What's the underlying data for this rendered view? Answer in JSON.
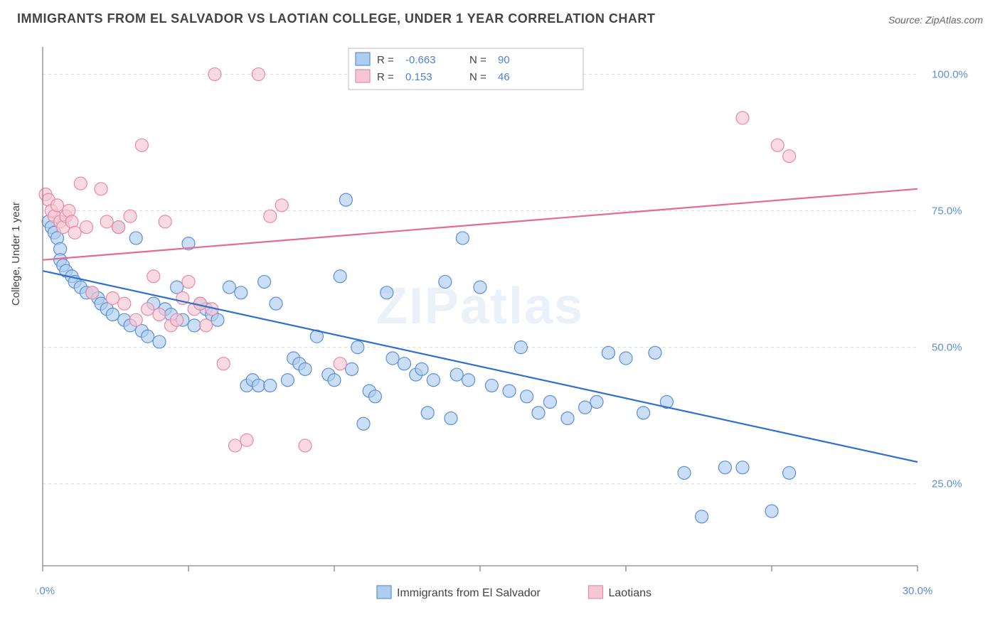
{
  "title": "IMMIGRANTS FROM EL SALVADOR VS LAOTIAN COLLEGE, UNDER 1 YEAR CORRELATION CHART",
  "source_label": "Source:",
  "source_name": "ZipAtlas.com",
  "watermark": "ZIPatlas",
  "y_axis_label": "College, Under 1 year",
  "chart": {
    "type": "scatter",
    "background_color": "#ffffff",
    "grid_color": "#d9d9d9",
    "axis_color": "#888888",
    "xlim": [
      0,
      30
    ],
    "ylim": [
      10,
      105
    ],
    "x_ticks": [
      0,
      5,
      10,
      15,
      20,
      25,
      30
    ],
    "x_tick_labels": [
      "0.0%",
      "",
      "",
      "",
      "",
      "",
      "30.0%"
    ],
    "y_ticks": [
      25,
      50,
      75,
      100
    ],
    "y_tick_labels": [
      "25.0%",
      "50.0%",
      "75.0%",
      "100.0%"
    ],
    "marker_radius": 9,
    "marker_stroke_width": 1.2,
    "line_width": 2.2,
    "series": [
      {
        "name": "Immigrants from El Salvador",
        "fill_color": "#aecdf0",
        "stroke_color": "#5b8fd6",
        "line_color": "#2f6fd0",
        "reg_line": {
          "x1": 0,
          "y1": 64,
          "x2": 30,
          "y2": 29
        },
        "R": "-0.663",
        "N": "90",
        "points": [
          [
            0.2,
            73
          ],
          [
            0.3,
            72
          ],
          [
            0.4,
            71
          ],
          [
            0.5,
            70
          ],
          [
            0.6,
            68
          ],
          [
            0.6,
            66
          ],
          [
            0.7,
            65
          ],
          [
            0.8,
            64
          ],
          [
            1.0,
            63
          ],
          [
            1.1,
            62
          ],
          [
            1.3,
            61
          ],
          [
            1.5,
            60
          ],
          [
            1.7,
            60
          ],
          [
            1.9,
            59
          ],
          [
            2.0,
            58
          ],
          [
            2.2,
            57
          ],
          [
            2.4,
            56
          ],
          [
            2.6,
            72
          ],
          [
            2.8,
            55
          ],
          [
            3.0,
            54
          ],
          [
            3.2,
            70
          ],
          [
            3.4,
            53
          ],
          [
            3.6,
            52
          ],
          [
            3.8,
            58
          ],
          [
            4.0,
            51
          ],
          [
            4.2,
            57
          ],
          [
            4.4,
            56
          ],
          [
            4.6,
            61
          ],
          [
            4.8,
            55
          ],
          [
            5.0,
            69
          ],
          [
            5.2,
            54
          ],
          [
            5.4,
            58
          ],
          [
            5.6,
            57
          ],
          [
            5.8,
            56
          ],
          [
            6.0,
            55
          ],
          [
            6.4,
            61
          ],
          [
            6.8,
            60
          ],
          [
            7.0,
            43
          ],
          [
            7.2,
            44
          ],
          [
            7.4,
            43
          ],
          [
            7.6,
            62
          ],
          [
            7.8,
            43
          ],
          [
            8.0,
            58
          ],
          [
            8.4,
            44
          ],
          [
            8.6,
            48
          ],
          [
            8.8,
            47
          ],
          [
            9.0,
            46
          ],
          [
            9.4,
            52
          ],
          [
            9.8,
            45
          ],
          [
            10.0,
            44
          ],
          [
            10.2,
            63
          ],
          [
            10.4,
            77
          ],
          [
            10.6,
            46
          ],
          [
            10.8,
            50
          ],
          [
            11.0,
            36
          ],
          [
            11.2,
            42
          ],
          [
            11.4,
            41
          ],
          [
            11.8,
            60
          ],
          [
            12.0,
            48
          ],
          [
            12.4,
            47
          ],
          [
            12.8,
            45
          ],
          [
            13.0,
            46
          ],
          [
            13.2,
            38
          ],
          [
            13.4,
            44
          ],
          [
            13.8,
            62
          ],
          [
            14.0,
            37
          ],
          [
            14.2,
            45
          ],
          [
            14.4,
            70
          ],
          [
            14.6,
            44
          ],
          [
            15.0,
            61
          ],
          [
            15.4,
            43
          ],
          [
            16.0,
            42
          ],
          [
            16.4,
            50
          ],
          [
            16.6,
            41
          ],
          [
            17.0,
            38
          ],
          [
            17.4,
            40
          ],
          [
            18.0,
            37
          ],
          [
            18.6,
            39
          ],
          [
            19.0,
            40
          ],
          [
            19.4,
            49
          ],
          [
            20.0,
            48
          ],
          [
            20.6,
            38
          ],
          [
            21.0,
            49
          ],
          [
            21.4,
            40
          ],
          [
            22.0,
            27
          ],
          [
            22.6,
            19
          ],
          [
            23.4,
            28
          ],
          [
            24.0,
            28
          ],
          [
            25.0,
            20
          ],
          [
            25.6,
            27
          ]
        ]
      },
      {
        "name": "Laotians",
        "fill_color": "#f6c6d3",
        "stroke_color": "#e88aa5",
        "line_color": "#e66b8f",
        "reg_line": {
          "x1": 0,
          "y1": 66,
          "x2": 30,
          "y2": 79
        },
        "R": "0.153",
        "N": "46",
        "points": [
          [
            0.1,
            78
          ],
          [
            0.2,
            77
          ],
          [
            0.3,
            75
          ],
          [
            0.4,
            74
          ],
          [
            0.5,
            76
          ],
          [
            0.6,
            73
          ],
          [
            0.7,
            72
          ],
          [
            0.8,
            74
          ],
          [
            0.9,
            75
          ],
          [
            1.0,
            73
          ],
          [
            1.1,
            71
          ],
          [
            1.3,
            80
          ],
          [
            1.5,
            72
          ],
          [
            1.7,
            60
          ],
          [
            2.0,
            79
          ],
          [
            2.2,
            73
          ],
          [
            2.4,
            59
          ],
          [
            2.6,
            72
          ],
          [
            2.8,
            58
          ],
          [
            3.0,
            74
          ],
          [
            3.2,
            55
          ],
          [
            3.4,
            87
          ],
          [
            3.6,
            57
          ],
          [
            3.8,
            63
          ],
          [
            4.0,
            56
          ],
          [
            4.2,
            73
          ],
          [
            4.4,
            54
          ],
          [
            4.6,
            55
          ],
          [
            4.8,
            59
          ],
          [
            5.0,
            62
          ],
          [
            5.2,
            57
          ],
          [
            5.4,
            58
          ],
          [
            5.6,
            54
          ],
          [
            5.8,
            57
          ],
          [
            5.9,
            100
          ],
          [
            6.2,
            47
          ],
          [
            6.6,
            32
          ],
          [
            7.0,
            33
          ],
          [
            7.4,
            100
          ],
          [
            7.8,
            74
          ],
          [
            8.2,
            76
          ],
          [
            9.0,
            32
          ],
          [
            10.2,
            47
          ],
          [
            24.0,
            92
          ],
          [
            25.2,
            87
          ],
          [
            25.6,
            85
          ]
        ]
      }
    ],
    "legend_top": {
      "box_stroke": "#bbbbbb",
      "R_label": "R =",
      "N_label": "N =",
      "value_color": "#4f80d6"
    },
    "legend_bottom": {
      "items": [
        "Immigrants from El Salvador",
        "Laotians"
      ]
    }
  }
}
